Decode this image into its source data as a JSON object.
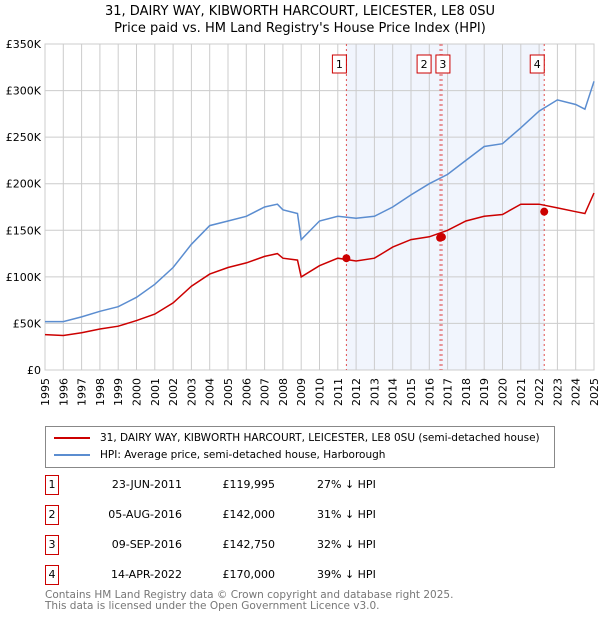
{
  "chart_data": {
    "type": "line",
    "title": "31, DAIRY WAY, KIBWORTH HARCOURT, LEICESTER, LE8 0SU",
    "subtitle": "Price paid vs. HM Land Registry's House Price Index (HPI)",
    "xlim": [
      1995,
      2025
    ],
    "ylim": [
      0,
      350000
    ],
    "x_ticks": [
      "1995",
      "1996",
      "1997",
      "1998",
      "1999",
      "2000",
      "2001",
      "2002",
      "2003",
      "2004",
      "2005",
      "2006",
      "2007",
      "2008",
      "2009",
      "2010",
      "2011",
      "2012",
      "2013",
      "2014",
      "2015",
      "2016",
      "2017",
      "2018",
      "2019",
      "2020",
      "2021",
      "2022",
      "2023",
      "2024",
      "2025"
    ],
    "y_ticks": [
      "£0",
      "£50K",
      "£100K",
      "£150K",
      "£200K",
      "£250K",
      "£300K",
      "£350K"
    ],
    "grid": true,
    "x": [
      1995,
      1996,
      1997,
      1998,
      1999,
      2000,
      2001,
      2002,
      2003,
      2004,
      2005,
      2006,
      2007,
      2007.7,
      2008,
      2008.8,
      2009,
      2010,
      2011,
      2012,
      2013,
      2014,
      2015,
      2016,
      2017,
      2018,
      2019,
      2020,
      2021,
      2022,
      2023,
      2024,
      2024.5,
      2025
    ],
    "series": [
      {
        "name": "31, DAIRY WAY, KIBWORTH HARCOURT, LEICESTER, LE8 0SU (semi-detached house)",
        "color": "#cc0000",
        "values": [
          38000,
          37000,
          40000,
          44000,
          47000,
          53000,
          60000,
          72000,
          90000,
          103000,
          110000,
          115000,
          122000,
          125000,
          120000,
          118000,
          100000,
          112000,
          120000,
          117000,
          120000,
          132000,
          140000,
          143000,
          150000,
          160000,
          165000,
          167000,
          178000,
          178000,
          174000,
          170000,
          168000,
          190000
        ]
      },
      {
        "name": "HPI: Average price, semi-detached house, Harborough",
        "color": "#5b8dd0",
        "values": [
          52000,
          52000,
          57000,
          63000,
          68000,
          78000,
          92000,
          110000,
          135000,
          155000,
          160000,
          165000,
          175000,
          178000,
          172000,
          168000,
          140000,
          160000,
          165000,
          163000,
          165000,
          175000,
          188000,
          200000,
          210000,
          225000,
          240000,
          243000,
          260000,
          278000,
          290000,
          285000,
          280000,
          310000
        ]
      }
    ],
    "sales": [
      {
        "n": "1",
        "x": 2011.47,
        "value": 119995
      },
      {
        "n": "2",
        "x": 2016.59,
        "value": 142000
      },
      {
        "n": "3",
        "x": 2016.69,
        "value": 142750
      },
      {
        "n": "4",
        "x": 2022.28,
        "value": 170000
      }
    ],
    "shade_range": [
      2011.47,
      2022.28
    ]
  },
  "table": [
    {
      "n": "1",
      "date": "23-JUN-2011",
      "price": "£119,995",
      "hpi": "27% ↓ HPI"
    },
    {
      "n": "2",
      "date": "05-AUG-2016",
      "price": "£142,000",
      "hpi": "31% ↓ HPI"
    },
    {
      "n": "3",
      "date": "09-SEP-2016",
      "price": "£142,750",
      "hpi": "32% ↓ HPI"
    },
    {
      "n": "4",
      "date": "14-APR-2022",
      "price": "£170,000",
      "hpi": "39% ↓ HPI"
    }
  ],
  "footer": {
    "line1": "Contains HM Land Registry data © Crown copyright and database right 2025.",
    "line2": "This data is licensed under the Open Government Licence v3.0."
  }
}
